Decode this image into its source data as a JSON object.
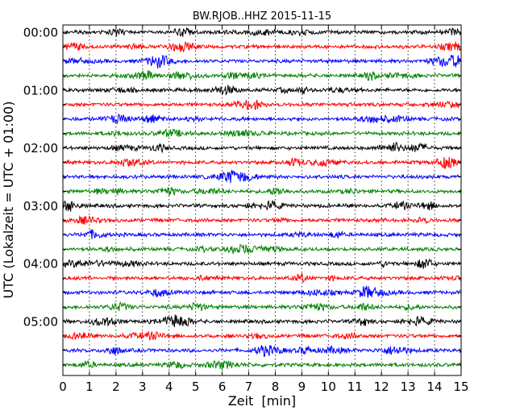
{
  "chart_data": {
    "type": "line",
    "subtype": "dayplot-seismogram",
    "title": "BW.RJOB..HHZ 2015-11-15",
    "xlabel": "Zeit  [min]",
    "ylabel": "UTC (Lokalzeit = UTC + 01:00)",
    "xlim": [
      0,
      15
    ],
    "x_ticks": [
      0,
      1,
      2,
      3,
      4,
      5,
      6,
      7,
      8,
      9,
      10,
      11,
      12,
      13,
      14,
      15
    ],
    "x_tick_labels": [
      "0",
      "1",
      "2",
      "3",
      "4",
      "5",
      "6",
      "7",
      "8",
      "9",
      "10",
      "11",
      "12",
      "13",
      "14",
      "15"
    ],
    "x_grid": "vertical-dotted",
    "row_interval_minutes": 15,
    "row_count": 24,
    "y_tick_labels": [
      "00:00",
      "01:00",
      "02:00",
      "03:00",
      "04:00",
      "05:00"
    ],
    "y_tick_rows": [
      0,
      4,
      8,
      12,
      16,
      20
    ],
    "trace_colors": [
      "#000000",
      "#ff0000",
      "#0000ff",
      "#008000"
    ],
    "trace_color_cycle": [
      "black",
      "red",
      "blue",
      "green"
    ]
  }
}
